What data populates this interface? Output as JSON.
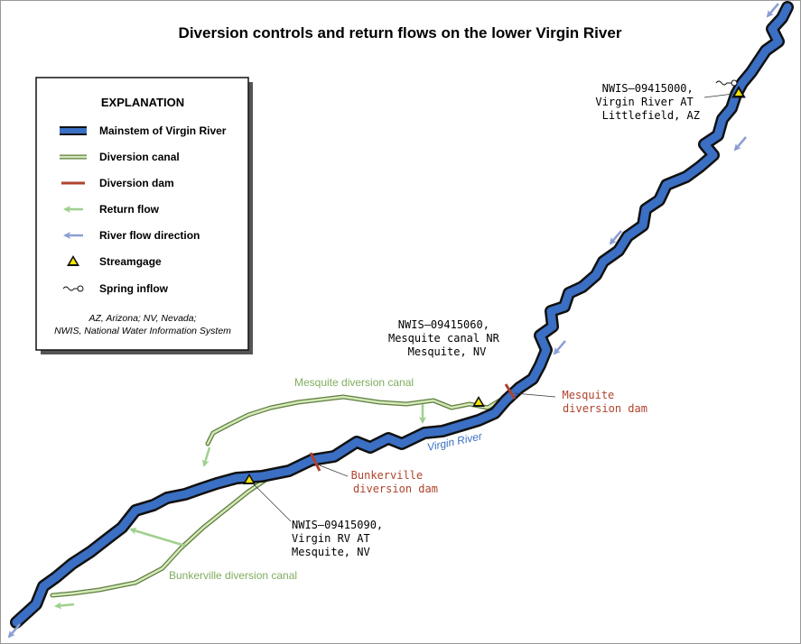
{
  "header": {
    "title": "Diversion controls and return flows on the lower Virgin River"
  },
  "legend": {
    "heading": "EXPLANATION",
    "items": [
      "Mainstem of Virgin River",
      "Diversion canal",
      "Diversion dam",
      "Return flow",
      "River flow direction",
      "Streamgage",
      "Spring inflow"
    ],
    "note": [
      "AZ, Arizona; NV, Nevada;",
      "NWIS, National Water Information System"
    ]
  },
  "gages": [
    {
      "lines": [
        "NWIS–09415000,",
        "Virgin River AT",
        "Littlefield, AZ"
      ]
    },
    {
      "lines": [
        "NWIS–09415060,",
        "Mesquite canal NR",
        "Mesquite, NV"
      ]
    },
    {
      "lines": [
        "NWIS–09415090,",
        "Virgin RV AT",
        "Mesquite, NV"
      ]
    }
  ],
  "features": {
    "mesquite_canal": "Mesquite diversion canal",
    "bunkerville_canal": "Bunkerville diversion canal",
    "river": "Virgin River",
    "mesquite_dam": [
      "Mesquite",
      "diversion dam"
    ],
    "bunkerville_dam": [
      "Bunkerville",
      "diversion dam"
    ]
  }
}
